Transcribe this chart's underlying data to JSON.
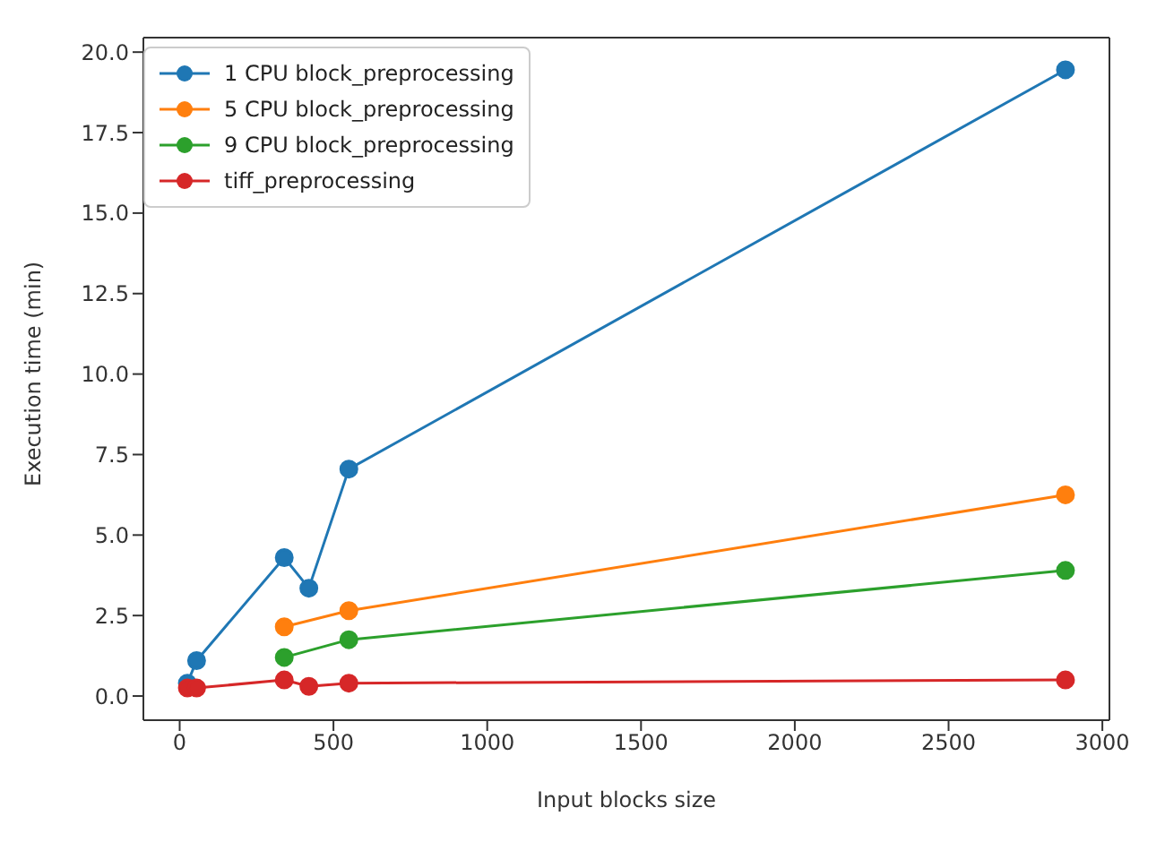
{
  "chart_data": {
    "type": "line",
    "xlabel": "Input blocks size",
    "ylabel": "Execution time (min)",
    "xlim": [
      -118,
      3023
    ],
    "xticks": [
      0,
      500,
      1000,
      1500,
      2000,
      2500,
      3000
    ],
    "ylim": [
      -0.75,
      20.45
    ],
    "yticks": [
      {
        "value": 0,
        "label": "0.0"
      },
      {
        "value": 2.5,
        "label": "2.5"
      },
      {
        "value": 5,
        "label": "5.0"
      },
      {
        "value": 7.5,
        "label": "7.5"
      },
      {
        "value": 10,
        "label": "10.0"
      },
      {
        "value": 12.5,
        "label": "12.5"
      },
      {
        "value": 15,
        "label": "15.0"
      },
      {
        "value": 17.5,
        "label": "17.5"
      },
      {
        "value": 20,
        "label": "20.0"
      }
    ],
    "grid": false,
    "legend": "top left",
    "marker": "circle",
    "line_style": "solid",
    "series": [
      {
        "name": "1 CPU block_preprocessing",
        "color": "#1f77b4",
        "x": [
          25,
          55,
          340,
          420,
          550,
          2880
        ],
        "values": [
          0.4,
          1.1,
          4.3,
          3.35,
          7.05,
          19.45
        ]
      },
      {
        "name": "5 CPU block_preprocessing",
        "color": "#ff7f0e",
        "x": [
          340,
          550,
          2880
        ],
        "values": [
          2.15,
          2.65,
          6.25
        ]
      },
      {
        "name": "9 CPU block_preprocessing",
        "color": "#2ca02c",
        "x": [
          340,
          550,
          2880
        ],
        "values": [
          1.2,
          1.75,
          3.9
        ]
      },
      {
        "name": "tiff_preprocessing",
        "color": "#d62728",
        "x": [
          25,
          55,
          340,
          420,
          550,
          2880
        ],
        "values": [
          0.25,
          0.25,
          0.5,
          0.3,
          0.4,
          0.5
        ]
      }
    ]
  }
}
